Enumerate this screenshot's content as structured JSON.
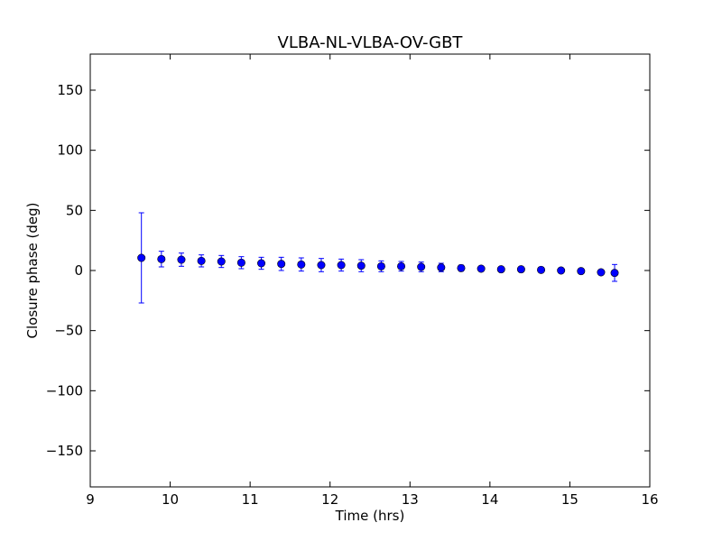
{
  "chart_data": {
    "type": "scatter",
    "title": "VLBA-NL-VLBA-OV-GBT",
    "xlabel": "Time (hrs)",
    "ylabel": "Closure phase (deg)",
    "xlim": [
      9,
      16
    ],
    "ylim": [
      -180,
      180
    ],
    "xticks": [
      9,
      10,
      11,
      12,
      13,
      14,
      15,
      16
    ],
    "xtick_labels": [
      "9",
      "10",
      "11",
      "12",
      "13",
      "14",
      "15",
      "16"
    ],
    "yticks": [
      -150,
      -100,
      -50,
      0,
      50,
      100,
      150
    ],
    "ytick_labels": [
      "−150",
      "−100",
      "−50",
      "0",
      "50",
      "100",
      "150"
    ],
    "grid": false,
    "marker_color": "#0000ff",
    "errorbar_color": "#0000ff",
    "points": [
      {
        "x": 9.64,
        "y": 10.5,
        "err": 37.5
      },
      {
        "x": 9.89,
        "y": 9.5,
        "err": 6.5
      },
      {
        "x": 10.14,
        "y": 9.0,
        "err": 5.5
      },
      {
        "x": 10.39,
        "y": 8.0,
        "err": 5.0
      },
      {
        "x": 10.64,
        "y": 7.5,
        "err": 5.0
      },
      {
        "x": 10.89,
        "y": 6.5,
        "err": 5.0
      },
      {
        "x": 11.14,
        "y": 6.0,
        "err": 5.0
      },
      {
        "x": 11.39,
        "y": 5.5,
        "err": 5.5
      },
      {
        "x": 11.64,
        "y": 5.0,
        "err": 5.5
      },
      {
        "x": 11.89,
        "y": 4.5,
        "err": 5.5
      },
      {
        "x": 12.14,
        "y": 4.5,
        "err": 5.0
      },
      {
        "x": 12.39,
        "y": 4.0,
        "err": 5.0
      },
      {
        "x": 12.64,
        "y": 3.5,
        "err": 4.5
      },
      {
        "x": 12.89,
        "y": 3.5,
        "err": 4.0
      },
      {
        "x": 13.14,
        "y": 3.0,
        "err": 4.0
      },
      {
        "x": 13.39,
        "y": 2.5,
        "err": 3.5
      },
      {
        "x": 13.64,
        "y": 2.0,
        "err": 2.5
      },
      {
        "x": 13.89,
        "y": 1.5,
        "err": 2.0
      },
      {
        "x": 14.14,
        "y": 1.0,
        "err": 1.5
      },
      {
        "x": 14.39,
        "y": 1.0,
        "err": 1.5
      },
      {
        "x": 14.64,
        "y": 0.5,
        "err": 1.5
      },
      {
        "x": 14.89,
        "y": 0.0,
        "err": 1.5
      },
      {
        "x": 15.14,
        "y": -0.5,
        "err": 1.5
      },
      {
        "x": 15.39,
        "y": -1.5,
        "err": 1.5
      },
      {
        "x": 15.56,
        "y": -2.0,
        "err": 7.0
      }
    ]
  }
}
